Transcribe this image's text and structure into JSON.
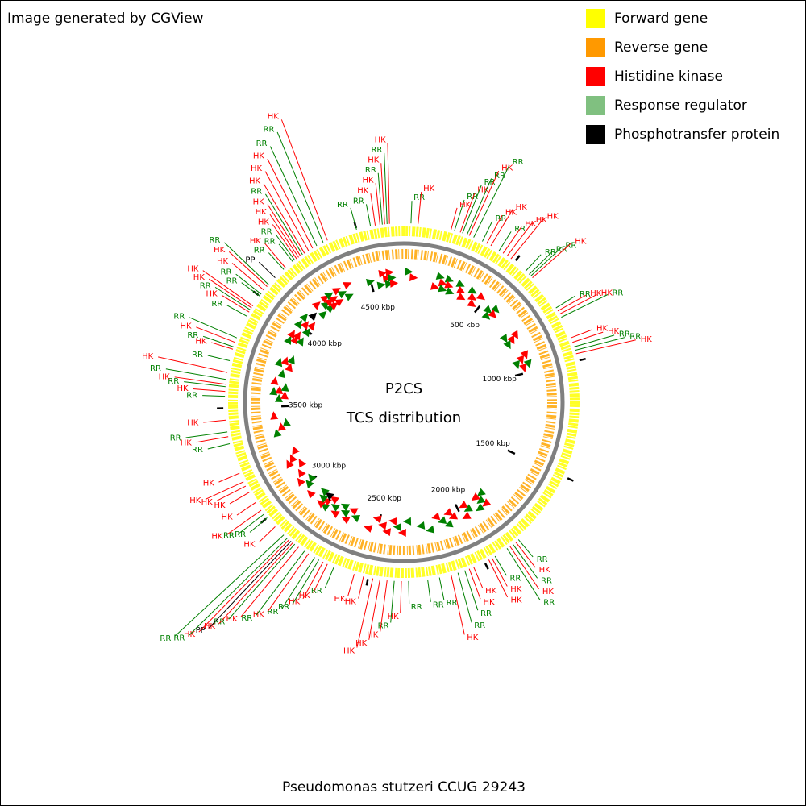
{
  "header": {
    "title": "Image generated by CGView"
  },
  "legend": [
    {
      "label": "Forward gene",
      "color": "#ffff00"
    },
    {
      "label": "Reverse gene",
      "color": "#ff9900"
    },
    {
      "label": "Histidine kinase",
      "color": "#ff0000"
    },
    {
      "label": "Response regulator",
      "color": "#80c080"
    },
    {
      "label": "Phosphotransfer protein",
      "color": "#000000"
    }
  ],
  "map": {
    "title": "P2CS",
    "subtitle": "TCS distribution",
    "genome_length": 4700,
    "ticks": [
      {
        "value": 500,
        "label": "500 kbp"
      },
      {
        "value": 1000,
        "label": "1000 kbp"
      },
      {
        "value": 1500,
        "label": "1500 kbp"
      },
      {
        "value": 2000,
        "label": "2000 kbp"
      },
      {
        "value": 2500,
        "label": "2500 kbp"
      },
      {
        "value": 3000,
        "label": "3000 kbp"
      },
      {
        "value": 3500,
        "label": "3500 kbp"
      },
      {
        "value": 4000,
        "label": "4000 kbp"
      },
      {
        "value": 4500,
        "label": "4500 kbp"
      }
    ],
    "features": [
      {
        "label": "RR",
        "position": 30,
        "color": "#008000"
      },
      {
        "label": "HK",
        "position": 60,
        "color": "#ff0000"
      },
      {
        "label": "HK",
        "position": 200,
        "color": "#ff0000"
      },
      {
        "label": "RR",
        "position": 215,
        "color": "#008000"
      },
      {
        "label": "HK",
        "position": 240,
        "color": "#ff0000"
      },
      {
        "label": "RR",
        "position": 250,
        "color": "#008000"
      },
      {
        "label": "RR",
        "position": 270,
        "color": "#008000"
      },
      {
        "label": "HK",
        "position": 280,
        "color": "#ff0000"
      },
      {
        "label": "RR",
        "position": 300,
        "color": "#008000"
      },
      {
        "label": "RR",
        "position": 340,
        "color": "#008000"
      },
      {
        "label": "HK",
        "position": 360,
        "color": "#ff0000"
      },
      {
        "label": "HK",
        "position": 380,
        "color": "#ff0000"
      },
      {
        "label": "RR",
        "position": 420,
        "color": "#008000"
      },
      {
        "label": "HK",
        "position": 440,
        "color": "#ff0000"
      },
      {
        "label": "HK",
        "position": 460,
        "color": "#ff0000"
      },
      {
        "label": "HK",
        "position": 480,
        "color": "#ff0000"
      },
      {
        "label": "RR",
        "position": 560,
        "color": "#008000"
      },
      {
        "label": "RR",
        "position": 580,
        "color": "#008000"
      },
      {
        "label": "RR",
        "position": 590,
        "color": "#008000"
      },
      {
        "label": "HK",
        "position": 600,
        "color": "#ff0000"
      },
      {
        "label": "RR",
        "position": 760,
        "color": "#008000"
      },
      {
        "label": "HK",
        "position": 775,
        "color": "#ff0000"
      },
      {
        "label": "HK",
        "position": 790,
        "color": "#ff0000"
      },
      {
        "label": "RR",
        "position": 805,
        "color": "#008000"
      },
      {
        "label": "HK",
        "position": 900,
        "color": "#ff0000"
      },
      {
        "label": "HK",
        "position": 920,
        "color": "#ff0000"
      },
      {
        "label": "RR",
        "position": 940,
        "color": "#008000"
      },
      {
        "label": "RR",
        "position": 955,
        "color": "#008000"
      },
      {
        "label": "HK",
        "position": 970,
        "color": "#ff0000"
      },
      {
        "label": "RR",
        "position": 1830,
        "color": "#008000"
      },
      {
        "label": "HK",
        "position": 1845,
        "color": "#ff0000"
      },
      {
        "label": "RR",
        "position": 1860,
        "color": "#008000"
      },
      {
        "label": "HK",
        "position": 1875,
        "color": "#ff0000"
      },
      {
        "label": "RR",
        "position": 1890,
        "color": "#008000"
      },
      {
        "label": "RR",
        "position": 1950,
        "color": "#008000"
      },
      {
        "label": "HK",
        "position": 1965,
        "color": "#ff0000"
      },
      {
        "label": "HK",
        "position": 1980,
        "color": "#ff0000"
      },
      {
        "label": "HK",
        "position": 2050,
        "color": "#ff0000"
      },
      {
        "label": "HK",
        "position": 2070,
        "color": "#ff0000"
      },
      {
        "label": "RR",
        "position": 2090,
        "color": "#008000"
      },
      {
        "label": "RR",
        "position": 2120,
        "color": "#008000"
      },
      {
        "label": "HK",
        "position": 2150,
        "color": "#ff0000"
      },
      {
        "label": "RR",
        "position": 2200,
        "color": "#008000"
      },
      {
        "label": "RR",
        "position": 2250,
        "color": "#008000"
      },
      {
        "label": "RR",
        "position": 2330,
        "color": "#008000"
      },
      {
        "label": "HK",
        "position": 2360,
        "color": "#ff0000"
      },
      {
        "label": "RR",
        "position": 2390,
        "color": "#008000"
      },
      {
        "label": "HK",
        "position": 2420,
        "color": "#ff0000"
      },
      {
        "label": "HK",
        "position": 2450,
        "color": "#ff0000"
      },
      {
        "label": "HK",
        "position": 2480,
        "color": "#ff0000"
      },
      {
        "label": "HK",
        "position": 2520,
        "color": "#ff0000"
      },
      {
        "label": "HK",
        "position": 2560,
        "color": "#ff0000"
      },
      {
        "label": "RR",
        "position": 2650,
        "color": "#008000"
      },
      {
        "label": "HK",
        "position": 2680,
        "color": "#ff0000"
      },
      {
        "label": "HK",
        "position": 2700,
        "color": "#ff0000"
      },
      {
        "label": "RR",
        "position": 2720,
        "color": "#008000"
      },
      {
        "label": "RR",
        "position": 2740,
        "color": "#008000"
      },
      {
        "label": "HK",
        "position": 2770,
        "color": "#ff0000"
      },
      {
        "label": "RR",
        "position": 2790,
        "color": "#008000"
      },
      {
        "label": "HK",
        "position": 2820,
        "color": "#ff0000"
      },
      {
        "label": "RR",
        "position": 2840,
        "color": "#008000"
      },
      {
        "label": "HK",
        "position": 2850,
        "color": "#ff0000"
      },
      {
        "label": "PP",
        "position": 2860,
        "color": "#000000"
      },
      {
        "label": "HK",
        "position": 2870,
        "color": "#ff0000"
      },
      {
        "label": "RR",
        "position": 2880,
        "color": "#008000"
      },
      {
        "label": "RR",
        "position": 2900,
        "color": "#008000"
      },
      {
        "label": "HK",
        "position": 2950,
        "color": "#ff0000"
      },
      {
        "label": "RR",
        "position": 3000,
        "color": "#008000"
      },
      {
        "label": "RR",
        "position": 3020,
        "color": "#008000"
      },
      {
        "label": "HK",
        "position": 3040,
        "color": "#ff0000"
      },
      {
        "label": "HK",
        "position": 3080,
        "color": "#ff0000"
      },
      {
        "label": "HK",
        "position": 3130,
        "color": "#ff0000"
      },
      {
        "label": "HK",
        "position": 3160,
        "color": "#ff0000"
      },
      {
        "label": "HK",
        "position": 3180,
        "color": "#ff0000"
      },
      {
        "label": "HK",
        "position": 3220,
        "color": "#ff0000"
      },
      {
        "label": "RR",
        "position": 3350,
        "color": "#008000"
      },
      {
        "label": "HK",
        "position": 3380,
        "color": "#ff0000"
      },
      {
        "label": "RR",
        "position": 3400,
        "color": "#008000"
      },
      {
        "label": "HK",
        "position": 3450,
        "color": "#ff0000"
      },
      {
        "label": "RR",
        "position": 3550,
        "color": "#008000"
      },
      {
        "label": "HK",
        "position": 3570,
        "color": "#ff0000"
      },
      {
        "label": "RR",
        "position": 3590,
        "color": "#008000"
      },
      {
        "label": "HK",
        "position": 3600,
        "color": "#ff0000"
      },
      {
        "label": "RR",
        "position": 3620,
        "color": "#008000"
      },
      {
        "label": "HK",
        "position": 3650,
        "color": "#ff0000"
      },
      {
        "label": "RR",
        "position": 3700,
        "color": "#008000"
      },
      {
        "label": "HK",
        "position": 3750,
        "color": "#ff0000"
      },
      {
        "label": "RR",
        "position": 3760,
        "color": "#008000"
      },
      {
        "label": "HK",
        "position": 3780,
        "color": "#ff0000"
      },
      {
        "label": "RR",
        "position": 3800,
        "color": "#008000"
      },
      {
        "label": "RR",
        "position": 3900,
        "color": "#008000"
      },
      {
        "label": "HK",
        "position": 3920,
        "color": "#ff0000"
      },
      {
        "label": "RR",
        "position": 3930,
        "color": "#008000"
      },
      {
        "label": "HK",
        "position": 3940,
        "color": "#ff0000"
      },
      {
        "label": "HK",
        "position": 3950,
        "color": "#ff0000"
      },
      {
        "label": "RR",
        "position": 4000,
        "color": "#008000"
      },
      {
        "label": "RR",
        "position": 4010,
        "color": "#008000"
      },
      {
        "label": "HK",
        "position": 4030,
        "color": "#ff0000"
      },
      {
        "label": "HK",
        "position": 4050,
        "color": "#ff0000"
      },
      {
        "label": "RR",
        "position": 4060,
        "color": "#008000"
      },
      {
        "label": "PP",
        "position": 4100,
        "color": "#000000"
      },
      {
        "label": "RR",
        "position": 4150,
        "color": "#008000"
      },
      {
        "label": "HK",
        "position": 4160,
        "color": "#ff0000"
      },
      {
        "label": "RR",
        "position": 4200,
        "color": "#008000"
      },
      {
        "label": "RR",
        "position": 4210,
        "color": "#008000"
      },
      {
        "label": "HK",
        "position": 4220,
        "color": "#ff0000"
      },
      {
        "label": "HK",
        "position": 4230,
        "color": "#ff0000"
      },
      {
        "label": "HK",
        "position": 4240,
        "color": "#ff0000"
      },
      {
        "label": "RR",
        "position": 4250,
        "color": "#008000"
      },
      {
        "label": "HK",
        "position": 4260,
        "color": "#ff0000"
      },
      {
        "label": "HK",
        "position": 4280,
        "color": "#ff0000"
      },
      {
        "label": "HK",
        "position": 4300,
        "color": "#ff0000"
      },
      {
        "label": "RR",
        "position": 4320,
        "color": "#008000"
      },
      {
        "label": "RR",
        "position": 4350,
        "color": "#008000"
      },
      {
        "label": "HK",
        "position": 4370,
        "color": "#ff0000"
      },
      {
        "label": "RR",
        "position": 4500,
        "color": "#008000"
      },
      {
        "label": "RR",
        "position": 4560,
        "color": "#008000"
      },
      {
        "label": "HK",
        "position": 4580,
        "color": "#ff0000"
      },
      {
        "label": "HK",
        "position": 4600,
        "color": "#ff0000"
      },
      {
        "label": "RR",
        "position": 4610,
        "color": "#008000"
      },
      {
        "label": "HK",
        "position": 4620,
        "color": "#ff0000"
      },
      {
        "label": "RR",
        "position": 4630,
        "color": "#008000"
      },
      {
        "label": "HK",
        "position": 4640,
        "color": "#ff0000"
      }
    ]
  },
  "footer": {
    "text": "Pseudomonas stutzeri CCUG 29243"
  }
}
